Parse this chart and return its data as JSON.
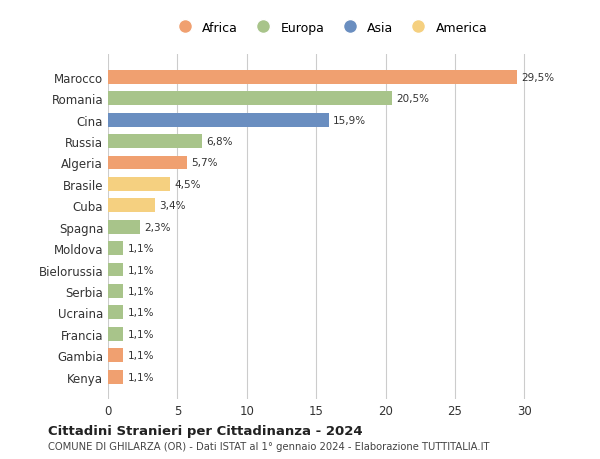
{
  "categories": [
    "Kenya",
    "Gambia",
    "Francia",
    "Ucraina",
    "Serbia",
    "Bielorussia",
    "Moldova",
    "Spagna",
    "Cuba",
    "Brasile",
    "Algeria",
    "Russia",
    "Cina",
    "Romania",
    "Marocco"
  ],
  "values": [
    1.1,
    1.1,
    1.1,
    1.1,
    1.1,
    1.1,
    1.1,
    2.3,
    3.4,
    4.5,
    5.7,
    6.8,
    15.9,
    20.5,
    29.5
  ],
  "labels": [
    "1,1%",
    "1,1%",
    "1,1%",
    "1,1%",
    "1,1%",
    "1,1%",
    "1,1%",
    "2,3%",
    "3,4%",
    "4,5%",
    "5,7%",
    "6,8%",
    "15,9%",
    "20,5%",
    "29,5%"
  ],
  "colors": [
    "#f0a070",
    "#f0a070",
    "#a8c48a",
    "#a8c48a",
    "#a8c48a",
    "#a8c48a",
    "#a8c48a",
    "#a8c48a",
    "#f5d080",
    "#f5d080",
    "#f0a070",
    "#a8c48a",
    "#6a8ec0",
    "#a8c48a",
    "#f0a070"
  ],
  "legend_labels": [
    "Africa",
    "Europa",
    "Asia",
    "America"
  ],
  "legend_colors": [
    "#f0a070",
    "#a8c48a",
    "#6a8ec0",
    "#f5d080"
  ],
  "title": "Cittadini Stranieri per Cittadinanza - 2024",
  "subtitle": "COMUNE DI GHILARZA (OR) - Dati ISTAT al 1° gennaio 2024 - Elaborazione TUTTITALIA.IT",
  "xlim": [
    0,
    32
  ],
  "xticks": [
    0,
    5,
    10,
    15,
    20,
    25,
    30
  ],
  "bg_color": "#ffffff",
  "grid_color": "#cccccc",
  "bar_height": 0.65
}
